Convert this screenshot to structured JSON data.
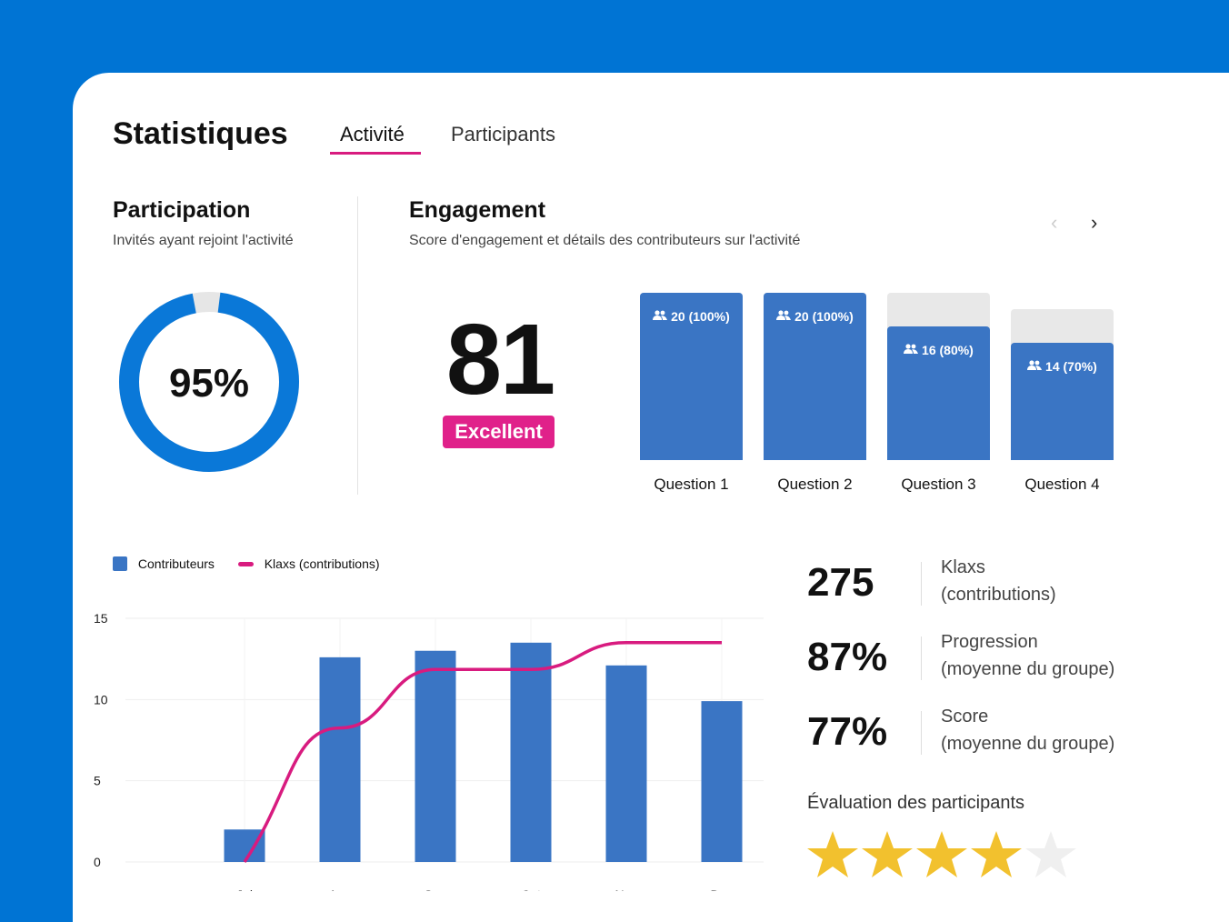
{
  "header": {
    "title": "Statistiques",
    "tabs": [
      {
        "label": "Activité",
        "active": true
      },
      {
        "label": "Participants",
        "active": false
      }
    ]
  },
  "participation": {
    "title": "Participation",
    "subtitle": "Invités ayant rejoint l'activité",
    "value_label": "95%",
    "value": 95
  },
  "engagement": {
    "title": "Engagement",
    "subtitle": "Score d'engagement et détails des contributeurs sur l'activité",
    "score": "81",
    "rating": "Excellent",
    "questions": [
      {
        "label": "Question 1",
        "text": "20 (100%)",
        "percent": 100
      },
      {
        "label": "Question 2",
        "text": "20 (100%)",
        "percent": 100
      },
      {
        "label": "Question 3",
        "text": "16 (80%)",
        "percent": 80
      },
      {
        "label": "Question 4",
        "text": "14 (70%)",
        "percent": 70
      }
    ]
  },
  "colors": {
    "background": "#0074d4",
    "accent": "#e0218a",
    "bar": "#3a75c4",
    "line": "#d81b7f",
    "star": "#f2c12e",
    "star_empty": "#efefef"
  },
  "icons": {
    "prev": "chevron-left-icon",
    "next": "chevron-right-icon",
    "users": "users-icon"
  },
  "chart_data": {
    "type": "bar",
    "categories": [
      "Jui",
      "Aou",
      "Sep",
      "Oct",
      "Nov",
      "Dec"
    ],
    "series": [
      {
        "name": "Contributeurs",
        "type": "bar",
        "axis": "left",
        "values": [
          2,
          12.6,
          13,
          13.5,
          12.1,
          9.9
        ]
      },
      {
        "name": "Klaxs (contributions)",
        "type": "line",
        "axis": "right",
        "values": [
          0,
          165,
          237,
          237,
          270,
          270
        ]
      }
    ],
    "ylim_left": [
      0,
      15
    ],
    "yticks_left": [
      "0",
      "5",
      "10",
      "15"
    ],
    "ylim_right": [
      0,
      300
    ],
    "yticks_right": [
      "0",
      "100",
      "200",
      "300"
    ],
    "grid": true,
    "legend": "top-left"
  },
  "stats": [
    {
      "value": "275",
      "label1": "Klaxs",
      "label2": "(contributions)"
    },
    {
      "value": "87%",
      "label1": "Progression",
      "label2": "(moyenne du groupe)"
    },
    {
      "value": "77%",
      "label1": "Score",
      "label2": "(moyenne du groupe)"
    }
  ],
  "rating": {
    "title": "Évaluation des participants",
    "stars": 4,
    "max": 5
  }
}
